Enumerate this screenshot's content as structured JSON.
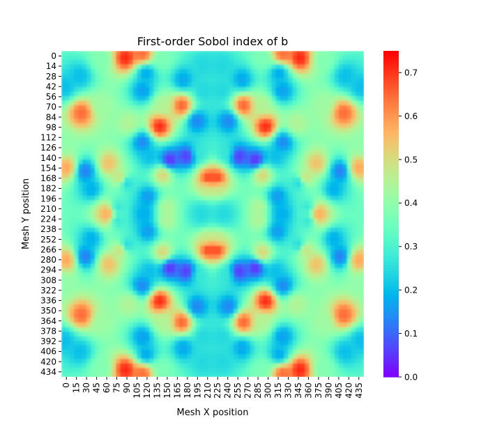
{
  "chart_data": {
    "type": "heatmap",
    "title": "First-order Sobol index of b",
    "xlabel": "Mesh X position",
    "ylabel": "Mesh Y position",
    "x_ticks": [
      "0",
      "15",
      "30",
      "45",
      "60",
      "75",
      "90",
      "105",
      "120",
      "135",
      "150",
      "165",
      "180",
      "195",
      "210",
      "225",
      "240",
      "255",
      "270",
      "285",
      "300",
      "315",
      "330",
      "345",
      "360",
      "375",
      "390",
      "405",
      "420",
      "435"
    ],
    "y_ticks": [
      "0",
      "14",
      "28",
      "42",
      "56",
      "70",
      "84",
      "98",
      "112",
      "126",
      "140",
      "154",
      "168",
      "182",
      "196",
      "210",
      "224",
      "238",
      "252",
      "266",
      "280",
      "294",
      "308",
      "322",
      "336",
      "350",
      "364",
      "378",
      "392",
      "406",
      "420",
      "434"
    ],
    "x_range": [
      0,
      447
    ],
    "y_range": [
      0,
      447
    ],
    "colorbar": {
      "colormap": "rainbow",
      "vmin": 0.0,
      "vmax": 0.75,
      "ticks": [
        "0.0",
        "0.1",
        "0.2",
        "0.3",
        "0.4",
        "0.5",
        "0.6",
        "0.7"
      ]
    },
    "symmetry": "mirror about center column and center row",
    "background_value": 0.35,
    "features": [
      {
        "x": 210,
        "y": 20,
        "value": 0.24
      },
      {
        "x": 210,
        "y": 55,
        "value": 0.24
      },
      {
        "x": 205,
        "y": 140,
        "value": 0.27
      },
      {
        "x": 200,
        "y": 96,
        "value": 0.13
      },
      {
        "x": 178,
        "y": 75,
        "value": 0.66
      },
      {
        "x": 180,
        "y": 40,
        "value": 0.17
      },
      {
        "x": 185,
        "y": 145,
        "value": 0.05
      },
      {
        "x": 160,
        "y": 150,
        "value": 0.04
      },
      {
        "x": 150,
        "y": 75,
        "value": 0.45
      },
      {
        "x": 145,
        "y": 104,
        "value": 0.72
      },
      {
        "x": 120,
        "y": 55,
        "value": 0.16
      },
      {
        "x": 125,
        "y": 30,
        "value": 0.17
      },
      {
        "x": 120,
        "y": 125,
        "value": 0.13
      },
      {
        "x": 130,
        "y": 145,
        "value": 0.2
      },
      {
        "x": 128,
        "y": 200,
        "value": 0.15
      },
      {
        "x": 122,
        "y": 225,
        "value": 0.18
      },
      {
        "x": 100,
        "y": 100,
        "value": 0.45
      },
      {
        "x": 60,
        "y": 75,
        "value": 0.42
      },
      {
        "x": 30,
        "y": 85,
        "value": 0.65
      },
      {
        "x": 28,
        "y": 35,
        "value": 0.2
      },
      {
        "x": 5,
        "y": 50,
        "value": 0.2
      },
      {
        "x": 35,
        "y": 165,
        "value": 0.12
      },
      {
        "x": 45,
        "y": 190,
        "value": 0.18
      },
      {
        "x": 8,
        "y": 160,
        "value": 0.58
      },
      {
        "x": 70,
        "y": 155,
        "value": 0.55
      },
      {
        "x": 88,
        "y": 175,
        "value": 0.52
      },
      {
        "x": 82,
        "y": 215,
        "value": 0.26
      },
      {
        "x": 68,
        "y": 225,
        "value": 0.58
      },
      {
        "x": 95,
        "y": 180,
        "value": 0.22
      },
      {
        "x": 150,
        "y": 170,
        "value": 0.52
      },
      {
        "x": 155,
        "y": 215,
        "value": 0.45
      },
      {
        "x": 230,
        "y": 175,
        "value": 0.7
      },
      {
        "x": 215,
        "y": 190,
        "value": 0.48
      },
      {
        "x": 210,
        "y": 225,
        "value": 0.25
      },
      {
        "x": 240,
        "y": 225,
        "value": 0.24
      },
      {
        "x": 120,
        "y": 5,
        "value": 0.65
      },
      {
        "x": 95,
        "y": 10,
        "value": 0.72
      },
      {
        "x": 150,
        "y": 10,
        "value": 0.37
      },
      {
        "x": 60,
        "y": 12,
        "value": 0.38
      },
      {
        "x": 0,
        "y": 130,
        "value": 0.4
      }
    ]
  }
}
